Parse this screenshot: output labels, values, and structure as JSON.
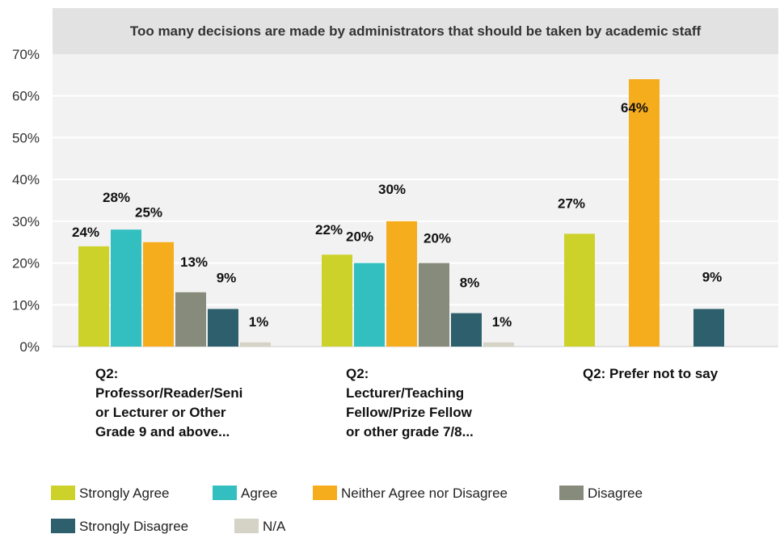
{
  "chart_data": {
    "type": "bar",
    "title": "Too many decisions are made by administrators that should be taken by academic staff",
    "categories": [
      [
        "Q2:",
        "Professor/Reader/Seni",
        "or Lecturer or Other",
        "Grade 9 and above..."
      ],
      [
        "Q2:",
        "Lecturer/Teaching",
        "Fellow/Prize Fellow",
        "or other grade 7/8..."
      ],
      [
        "Q2: Prefer not to say"
      ]
    ],
    "ylim": [
      0,
      70
    ],
    "yticks": [
      "0%",
      "10%",
      "20%",
      "30%",
      "40%",
      "50%",
      "60%",
      "70%"
    ],
    "grid": true,
    "legend_position": "bottom",
    "series": [
      {
        "name": "Strongly Agree",
        "color": "#cdd22b",
        "values": [
          24,
          22,
          27
        ],
        "labels": [
          "24%",
          "22%",
          "27%"
        ]
      },
      {
        "name": "Agree",
        "color": "#33bfc0",
        "values": [
          28,
          20,
          null
        ],
        "labels": [
          "28%",
          "20%",
          ""
        ]
      },
      {
        "name": "Neither Agree nor Disagree",
        "color": "#f6ad1d",
        "values": [
          25,
          30,
          64
        ],
        "labels": [
          "25%",
          "30%",
          "64%"
        ]
      },
      {
        "name": "Disagree",
        "color": "#878b7b",
        "values": [
          13,
          20,
          null
        ],
        "labels": [
          "13%",
          "20%",
          ""
        ]
      },
      {
        "name": "Strongly Disagree",
        "color": "#2d5f6d",
        "values": [
          9,
          8,
          9
        ],
        "labels": [
          "9%",
          "8%",
          "9%"
        ]
      },
      {
        "name": "N/A",
        "color": "#d5d3c5",
        "values": [
          1,
          1,
          null
        ],
        "labels": [
          "1%",
          "1%",
          ""
        ]
      }
    ]
  }
}
